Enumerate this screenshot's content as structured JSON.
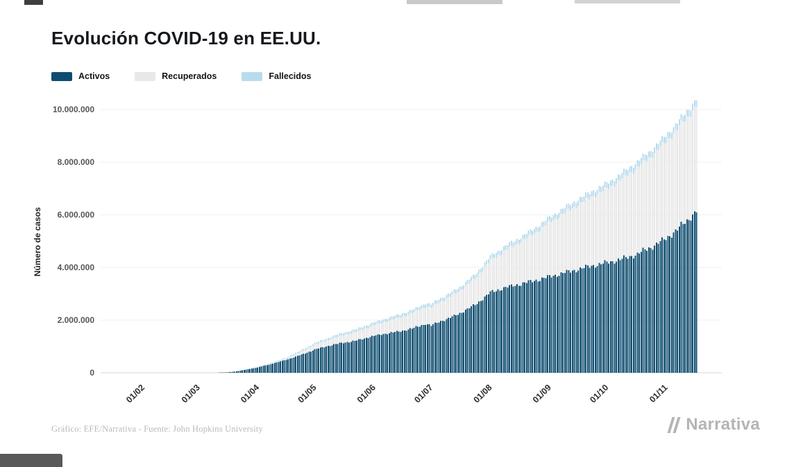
{
  "page": {
    "title": "Evolución COVID-19 en EE.UU.",
    "footer": "Gráfico: EFE/Narrativa - Fuente: John Hopkins University",
    "brand": "Narrativa",
    "brand_icon": "narrativa-n-icon"
  },
  "legend": {
    "items": [
      {
        "label": "Activos",
        "color": "#0f4d70"
      },
      {
        "label": "Recuperados",
        "color": "#e8e8e8"
      },
      {
        "label": "Fallecidos",
        "color": "#b8dcee"
      }
    ]
  },
  "chart_data": {
    "type": "bar",
    "subtype": "stacked-daily-bars",
    "title": "Evolución COVID-19 en EE.UU.",
    "xlabel": "",
    "ylabel": "Número de casos",
    "units": "millions of cases",
    "ylim": [
      0,
      10500000
    ],
    "grid": "horizontal",
    "legend_position": "top-left",
    "y_ticks": [
      "0",
      "2.000.000",
      "4.000.000",
      "6.000.000",
      "8.000.000",
      "10.000.000"
    ],
    "y_tick_values": [
      0,
      2000000,
      4000000,
      6000000,
      8000000,
      10000000
    ],
    "x_ticks": [
      {
        "label": "01/02",
        "day": 0
      },
      {
        "label": "01/03",
        "day": 29
      },
      {
        "label": "01/04",
        "day": 60
      },
      {
        "label": "01/05",
        "day": 90
      },
      {
        "label": "01/06",
        "day": 121
      },
      {
        "label": "01/07",
        "day": 151
      },
      {
        "label": "01/08",
        "day": 182
      },
      {
        "label": "01/09",
        "day": 213
      },
      {
        "label": "01/10",
        "day": 243
      },
      {
        "label": "01/11",
        "day": 274
      }
    ],
    "start_day": 38,
    "end_day": 290,
    "series": [
      {
        "name": "Activos",
        "color": "#0f4d70",
        "keypoints_day_millions": [
          [
            38,
            0.002
          ],
          [
            45,
            0.02
          ],
          [
            50,
            0.06
          ],
          [
            60,
            0.2
          ],
          [
            67,
            0.33
          ],
          [
            74,
            0.47
          ],
          [
            82,
            0.66
          ],
          [
            90,
            0.88
          ],
          [
            97,
            1.02
          ],
          [
            104,
            1.13
          ],
          [
            111,
            1.21
          ],
          [
            121,
            1.4
          ],
          [
            128,
            1.5
          ],
          [
            135,
            1.58
          ],
          [
            142,
            1.7
          ],
          [
            148,
            1.86
          ],
          [
            151,
            1.79
          ],
          [
            155,
            1.94
          ],
          [
            160,
            2.06
          ],
          [
            166,
            2.26
          ],
          [
            174,
            2.58
          ],
          [
            182,
            3.05
          ],
          [
            189,
            3.22
          ],
          [
            196,
            3.34
          ],
          [
            203,
            3.46
          ],
          [
            213,
            3.65
          ],
          [
            220,
            3.79
          ],
          [
            228,
            3.93
          ],
          [
            235,
            4.06
          ],
          [
            243,
            4.18
          ],
          [
            250,
            4.3
          ],
          [
            258,
            4.48
          ],
          [
            266,
            4.76
          ],
          [
            274,
            5.1
          ],
          [
            280,
            5.45
          ],
          [
            285,
            5.78
          ],
          [
            290,
            6.15
          ]
        ]
      },
      {
        "name": "Recuperados",
        "color": "#e8e8e8",
        "keypoints_day_millions": [
          [
            38,
            0.0
          ],
          [
            50,
            0.004
          ],
          [
            60,
            0.012
          ],
          [
            74,
            0.04
          ],
          [
            90,
            0.18
          ],
          [
            104,
            0.28
          ],
          [
            111,
            0.33
          ],
          [
            121,
            0.4
          ],
          [
            135,
            0.53
          ],
          [
            151,
            0.68
          ],
          [
            166,
            0.86
          ],
          [
            174,
            1.0
          ],
          [
            182,
            1.22
          ],
          [
            196,
            1.56
          ],
          [
            205,
            1.8
          ],
          [
            213,
            2.06
          ],
          [
            228,
            2.46
          ],
          [
            243,
            2.8
          ],
          [
            258,
            3.26
          ],
          [
            266,
            3.45
          ],
          [
            274,
            3.68
          ],
          [
            282,
            3.86
          ],
          [
            290,
            4.0
          ]
        ]
      },
      {
        "name": "Fallecidos",
        "color": "#b8dcee",
        "keypoints_day_millions": [
          [
            38,
            0.001
          ],
          [
            60,
            0.013
          ],
          [
            74,
            0.032
          ],
          [
            90,
            0.066
          ],
          [
            104,
            0.089
          ],
          [
            121,
            0.107
          ],
          [
            135,
            0.118
          ],
          [
            151,
            0.129
          ],
          [
            166,
            0.139
          ],
          [
            182,
            0.156
          ],
          [
            196,
            0.171
          ],
          [
            213,
            0.186
          ],
          [
            228,
            0.199
          ],
          [
            243,
            0.211
          ],
          [
            258,
            0.223
          ],
          [
            274,
            0.233
          ],
          [
            290,
            0.249
          ]
        ]
      }
    ],
    "notes": "Day 0 = 01/02 (1 Feb 2020). Stacked order bottom-to-top: Activos, Recuperados, Fallecidos. Final stacked total ~10.4M around mid-November."
  }
}
